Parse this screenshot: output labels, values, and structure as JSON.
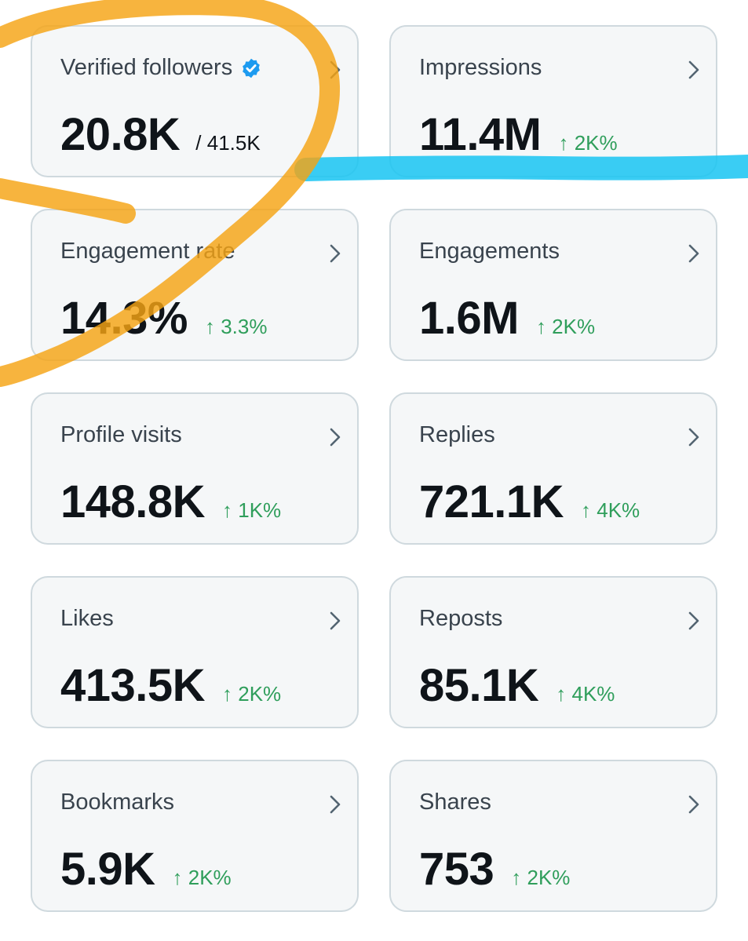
{
  "colors": {
    "card_background": "#f5f7f8",
    "card_border": "#cfd9de",
    "label_text": "#39434d",
    "value_text": "#0f1419",
    "delta_positive": "#2f9e5b",
    "verified_blue": "#1d9bf0",
    "annotation_orange": "#f5a413",
    "annotation_cyan": "#17c4f2"
  },
  "cards": [
    {
      "label": "Verified followers",
      "value": "20.8K",
      "total": "/ 41.5K",
      "icon": "verified-badge-icon"
    },
    {
      "label": "Impressions",
      "value": "11.4M",
      "delta": "↑ 2K%"
    },
    {
      "label": "Engagement rate",
      "value": "14.3%",
      "delta": "↑ 3.3%"
    },
    {
      "label": "Engagements",
      "value": "1.6M",
      "delta": "↑ 2K%"
    },
    {
      "label": "Profile visits",
      "value": "148.8K",
      "delta": "↑ 1K%"
    },
    {
      "label": "Replies",
      "value": "721.1K",
      "delta": "↑ 4K%"
    },
    {
      "label": "Likes",
      "value": "413.5K",
      "delta": "↑ 2K%"
    },
    {
      "label": "Reposts",
      "value": "85.1K",
      "delta": "↑ 4K%"
    },
    {
      "label": "Bookmarks",
      "value": "5.9K",
      "delta": "↑ 2K%"
    },
    {
      "label": "Shares",
      "value": "753",
      "delta": "↑ 2K%"
    }
  ],
  "annotations": [
    {
      "type": "freehand-circle",
      "color": "orange"
    },
    {
      "type": "highlight-line",
      "color": "cyan"
    }
  ]
}
